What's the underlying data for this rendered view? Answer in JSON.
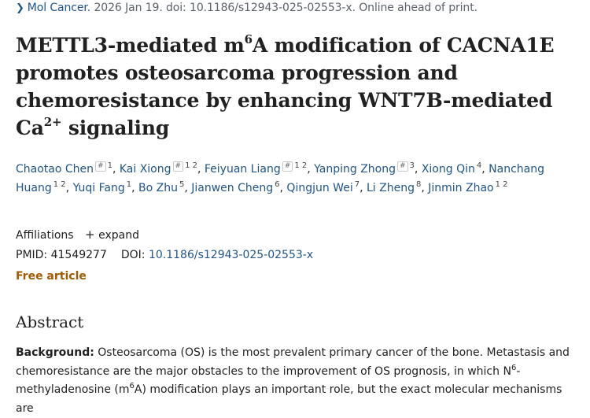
{
  "journal": {
    "name": "Mol Cancer.",
    "citation": " 2026 Jan 19. doi: 10.1186/s12943-025-02553-x. Online ahead of print."
  },
  "title": {
    "part1": "METTL3-mediated m",
    "sup1": "6",
    "part2": "A modification of CACNA1E promotes osteosarcoma progression and chemoresistance by enhancing WNT7B-mediated Ca",
    "sup2": "2+",
    "part3": " signaling"
  },
  "authors": [
    {
      "name": "Chaotao Chen",
      "equal": "#",
      "affil": "1"
    },
    {
      "name": "Kai Xiong",
      "equal": "#",
      "affil": "1 2"
    },
    {
      "name": "Feiyuan Liang",
      "equal": "#",
      "affil": "1 2"
    },
    {
      "name": "Yanping Zhong",
      "equal": "#",
      "affil": "3"
    },
    {
      "name": "Xiong Qin",
      "equal": "",
      "affil": "4"
    },
    {
      "name": "Nanchang Huang",
      "equal": "",
      "affil": "1 2"
    },
    {
      "name": "Yuqi Fang",
      "equal": "",
      "affil": "1"
    },
    {
      "name": "Bo Zhu",
      "equal": "",
      "affil": "5"
    },
    {
      "name": "Jianwen Cheng",
      "equal": "",
      "affil": "6"
    },
    {
      "name": "Qingjun Wei",
      "equal": "",
      "affil": "7"
    },
    {
      "name": "Li Zheng",
      "equal": "",
      "affil": "8"
    },
    {
      "name": "Jinmin Zhao",
      "equal": "",
      "affil": "1 2"
    }
  ],
  "affiliations": {
    "label": "Affiliations",
    "expand": "expand",
    "icon": "plus-icon"
  },
  "identifiers": {
    "pmid_label": "PMID: 41549277",
    "doi_label": "DOI:",
    "doi_value": "10.1186/s12943-025-02553-x"
  },
  "free_article": "Free article",
  "abstract": {
    "heading": "Abstract",
    "background_label": "Background:",
    "text1": " Osteosarcoma (OS) is the most prevalent primary cancer of the bone. Metastasis and chemoresistance are the major obstacles to the improvement of OS prognosis, in which N",
    "sup1": "6",
    "text2": "-methyladenosine (m",
    "sup2": "6",
    "text3": "A) modification plays an important role, but the exact molecular mechanisms are"
  },
  "colors": {
    "link": "#20558a",
    "free_article": "#a15a00",
    "text": "#212121"
  }
}
